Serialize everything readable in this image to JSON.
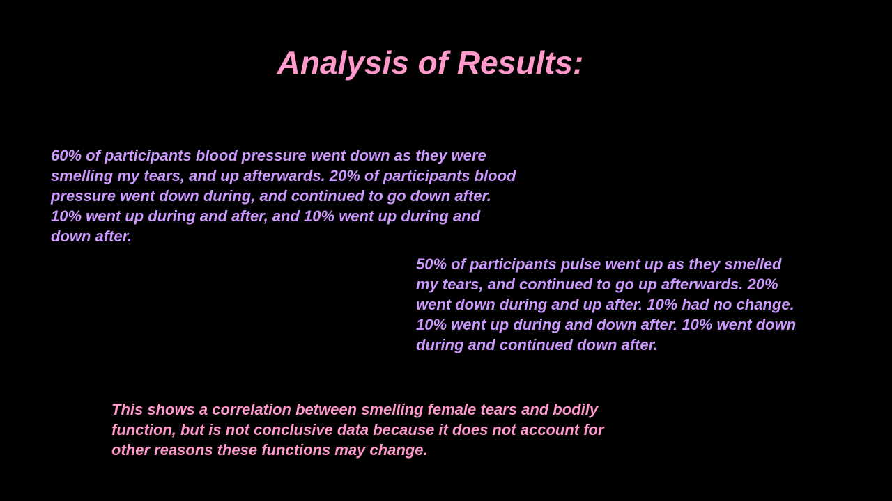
{
  "slide": {
    "title": "Analysis of Results:",
    "blood_pressure_lines": [
      "60% of participants blood pressure went down as they were",
      "smelling my tears, and up afterwards. 20% of participants blood",
      "pressure went down during, and continued to go down after.",
      "10% went up during and after, and 10% went up during and",
      "down after."
    ],
    "pulse_lines": [
      "50% of participants pulse went up as they smelled",
      "my tears, and continued to go up afterwards. 20%",
      "went down during and up after. 10% had no change.",
      "10% went up during and down after. 10% went down",
      "during and continued down after."
    ],
    "conclusion_lines": [
      "This shows a correlation between smelling female tears and bodily",
      "function, but is not conclusive data because it does not account for",
      "other reasons these functions may change."
    ]
  },
  "colors": {
    "background": "#000000",
    "title": "#ff99cc",
    "body_text": "#cc99ff",
    "conclusion_text": "#ff99cc"
  }
}
